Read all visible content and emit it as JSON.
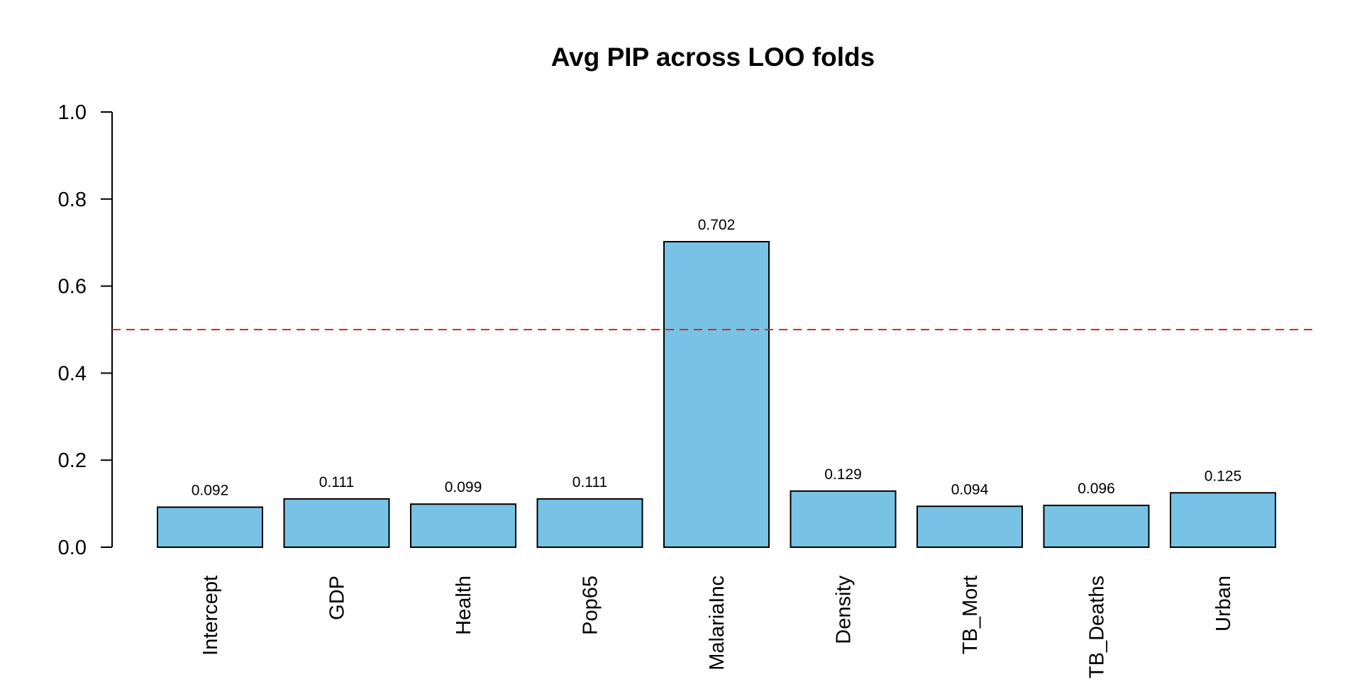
{
  "chart_data": {
    "type": "bar",
    "title": "Avg PIP across LOO folds",
    "xlabel": "",
    "ylabel": "",
    "categories": [
      "Intercept",
      "GDP",
      "Health",
      "Pop65",
      "MalariaInc",
      "Density",
      "TB_Mort",
      "TB_Deaths",
      "Urban"
    ],
    "values": [
      0.092,
      0.111,
      0.099,
      0.111,
      0.702,
      0.129,
      0.094,
      0.096,
      0.125
    ],
    "value_labels": [
      "0.092",
      "0.111",
      "0.099",
      "0.111",
      "0.702",
      "0.129",
      "0.094",
      "0.096",
      "0.125"
    ],
    "ylim": [
      0,
      1
    ],
    "y_ticks": [
      0.0,
      0.2,
      0.4,
      0.6,
      0.8,
      1.0
    ],
    "y_tick_labels": [
      "0.0",
      "0.2",
      "0.4",
      "0.6",
      "0.8",
      "1.0"
    ],
    "reference_line": {
      "y": 0.5,
      "style": "dashed",
      "color": "#e8202a"
    },
    "bar_color": "#78c2e5",
    "bar_edge_color": "#000000",
    "x_label_orientation": "vertical",
    "grid": false,
    "legend": "none"
  }
}
